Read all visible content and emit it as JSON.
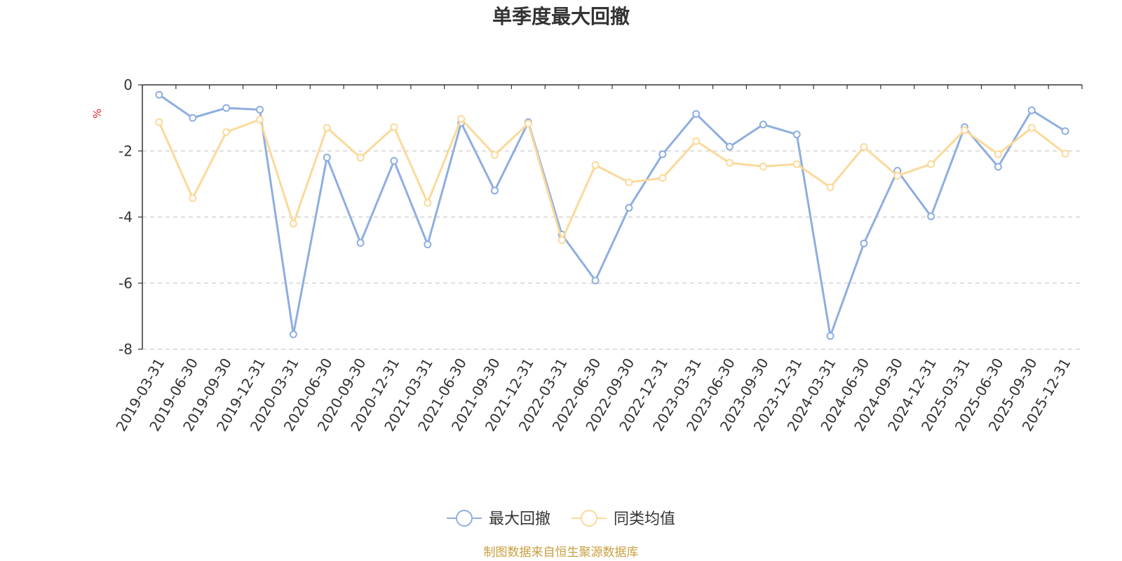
{
  "chart_data": {
    "type": "line",
    "title": "单季度最大回撤",
    "ylabel": "%",
    "ylim": [
      -8,
      0
    ],
    "yticks": [
      0,
      -2,
      -4,
      -6,
      -8
    ],
    "grid": true,
    "legend_position": "bottom-center",
    "x": [
      "2019-03-31",
      "2019-06-30",
      "2019-09-30",
      "2019-12-31",
      "2020-03-31",
      "2020-06-30",
      "2020-09-30",
      "2020-12-31",
      "2021-03-31",
      "2021-06-30",
      "2021-09-30",
      "2021-12-31",
      "2022-03-31",
      "2022-06-30",
      "2022-09-30",
      "2022-12-31",
      "2023-03-31",
      "2023-06-30",
      "2023-09-30",
      "2023-12-31",
      "2024-03-31",
      "2024-06-30",
      "2024-09-30",
      "2024-12-31",
      "2025-03-31",
      "2025-06-30",
      "2025-09-30",
      "2025-12-31"
    ],
    "series": [
      {
        "name": "最大回撤",
        "color": "#8eaee0",
        "values": [
          -0.3,
          -1.0,
          -0.7,
          -0.75,
          -7.55,
          -2.2,
          -4.78,
          -2.3,
          -4.83,
          -1.15,
          -3.2,
          -1.13,
          -4.53,
          -5.92,
          -3.72,
          -2.1,
          -0.88,
          -1.87,
          -1.2,
          -1.5,
          -7.6,
          -4.8,
          -2.6,
          -3.98,
          -1.28,
          -2.48,
          -0.77,
          -1.4
        ]
      },
      {
        "name": "同类均值",
        "color": "#fbd99a",
        "values": [
          -1.13,
          -3.43,
          -1.43,
          -1.05,
          -4.2,
          -1.3,
          -2.2,
          -1.28,
          -3.57,
          -1.03,
          -2.12,
          -1.17,
          -4.7,
          -2.43,
          -2.95,
          -2.82,
          -1.7,
          -2.36,
          -2.47,
          -2.4,
          -3.1,
          -1.88,
          -2.75,
          -2.4,
          -1.37,
          -2.1,
          -1.3,
          -2.08
        ]
      }
    ],
    "source": "制图数据来自恒生聚源数据库"
  }
}
